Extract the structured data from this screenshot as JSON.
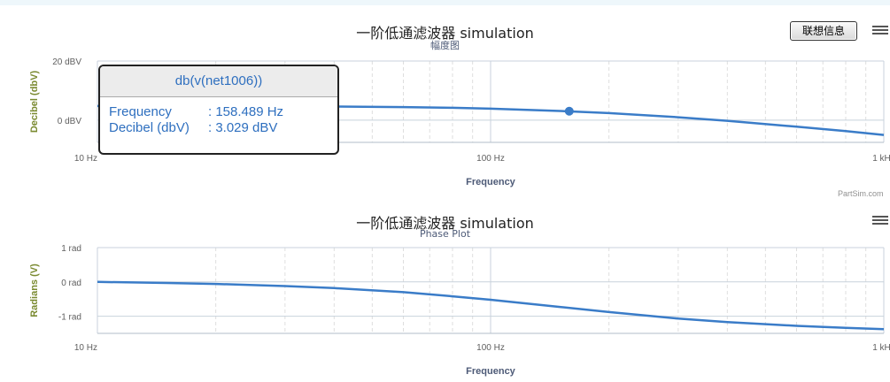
{
  "chart_data": [
    {
      "type": "line",
      "title": "一阶低通滤波器 simulation",
      "subtitle": "幅度图",
      "xlabel": "Frequency",
      "ylabel": "Decibel (dbV)",
      "x_scale": "log",
      "xlim": [
        10,
        1000
      ],
      "ylim": [
        -7.5,
        20
      ],
      "x_ticks": [
        10,
        100,
        1000
      ],
      "x_tick_labels": [
        "10 Hz",
        "100 Hz",
        "1 kHz"
      ],
      "y_ticks": [
        0,
        20
      ],
      "y_tick_labels": [
        "0 dBV",
        "20 dBV"
      ],
      "grid": true,
      "series": [
        {
          "name": "db(v(net1006))",
          "color": "#3a7cc8",
          "x": [
            10,
            15,
            20,
            30,
            40,
            60,
            80,
            100,
            150,
            200,
            300,
            400,
            600,
            800,
            1000
          ],
          "values": [
            4.8,
            4.78,
            4.76,
            4.7,
            4.62,
            4.42,
            4.18,
            3.9,
            3.1,
            2.4,
            1.0,
            -0.2,
            -2.2,
            -3.7,
            -5.0
          ]
        }
      ],
      "highlight_point": {
        "x": 158.489,
        "y": 3.029
      },
      "tooltip": {
        "series_name": "db(v(net1006))",
        "rows": [
          {
            "label": "Frequency",
            "value": ": 158.489 Hz"
          },
          {
            "label": "Decibel (dbV)",
            "value": ": 3.029 dBV"
          }
        ]
      },
      "menu_icon": "hamburger-menu-icon",
      "button_label": "联想信息",
      "credit": "PartSim.com"
    },
    {
      "type": "line",
      "title": "一阶低通滤波器 simulation",
      "subtitle": "Phase Plot",
      "xlabel": "Frequency",
      "ylabel": "Radians (V)",
      "x_scale": "log",
      "xlim": [
        10,
        1000
      ],
      "ylim": [
        -1.5,
        1
      ],
      "x_ticks": [
        10,
        100,
        1000
      ],
      "x_tick_labels": [
        "10 Hz",
        "100 Hz",
        "1 kHz"
      ],
      "y_ticks": [
        1,
        0,
        -1
      ],
      "y_tick_labels": [
        "1 rad",
        "0 rad",
        "-1 rad"
      ],
      "grid": true,
      "series": [
        {
          "color": "#3a7cc8",
          "x": [
            10,
            15,
            20,
            30,
            40,
            60,
            80,
            100,
            150,
            200,
            300,
            400,
            600,
            800,
            1000
          ],
          "values": [
            0,
            -0.03,
            -0.06,
            -0.12,
            -0.18,
            -0.3,
            -0.42,
            -0.52,
            -0.73,
            -0.88,
            -1.07,
            -1.17,
            -1.28,
            -1.34,
            -1.38
          ]
        }
      ],
      "menu_icon": "hamburger-menu-icon"
    }
  ]
}
